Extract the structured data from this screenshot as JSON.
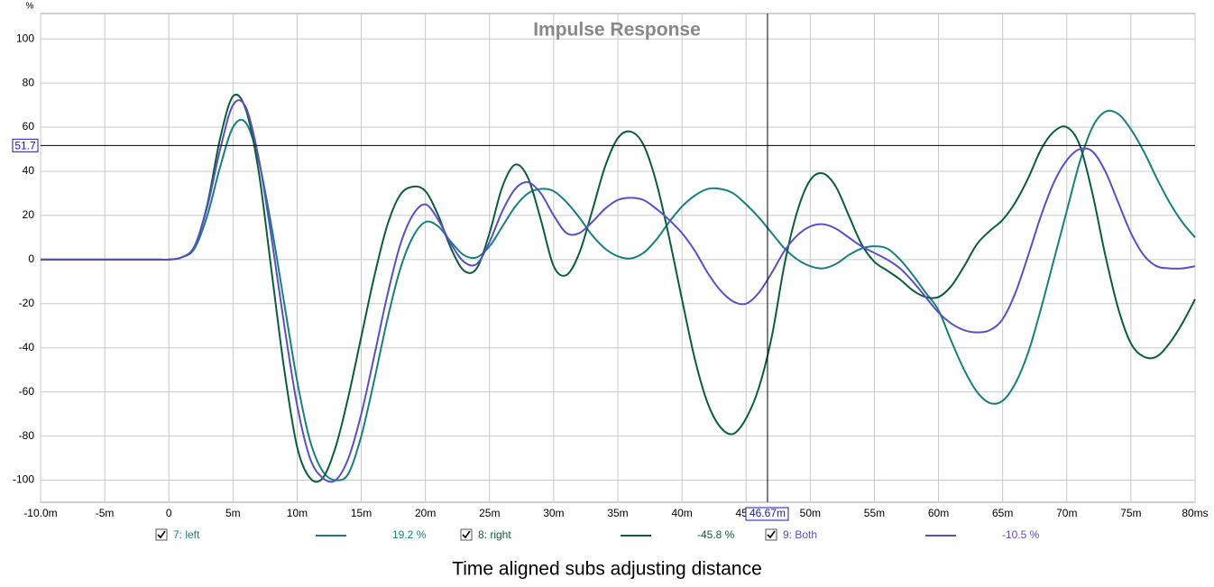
{
  "chart_data": {
    "type": "line",
    "title": "Impulse Response",
    "caption": "Time aligned subs adjusting distance",
    "y_unit": "%",
    "x": [
      -10,
      -9,
      -8,
      -7,
      -6,
      -5,
      -4,
      -3,
      -2,
      -1,
      0,
      1,
      2,
      3,
      4,
      5,
      6,
      7,
      8,
      9,
      10,
      11,
      12,
      13,
      14,
      15,
      16,
      17,
      18,
      19,
      20,
      21,
      22,
      23,
      24,
      25,
      26,
      27,
      28,
      29,
      30,
      31,
      32,
      33,
      34,
      35,
      36,
      37,
      38,
      39,
      40,
      41,
      42,
      43,
      44,
      45,
      46,
      47,
      48,
      49,
      50,
      51,
      52,
      53,
      54,
      55,
      56,
      57,
      58,
      59,
      60,
      61,
      62,
      63,
      64,
      65,
      66,
      67,
      68,
      69,
      70,
      71,
      72,
      73,
      74,
      75,
      76,
      77,
      78,
      79,
      80
    ],
    "series": [
      {
        "name": "7: left",
        "color": "#17807e",
        "cursor_value": 19.2,
        "cursor_value_label": "19.2 %",
        "values": [
          0,
          0,
          0,
          0,
          0,
          0,
          0,
          0,
          0,
          0,
          0,
          1,
          5,
          20,
          42,
          60,
          62,
          45,
          15,
          -20,
          -55,
          -82,
          -96,
          -100,
          -97,
          -80,
          -55,
          -28,
          -5,
          10,
          17,
          15,
          8,
          2,
          1,
          6,
          15,
          24,
          30,
          32,
          31,
          26,
          19,
          11,
          5,
          1.5,
          0.5,
          3,
          9,
          17,
          24,
          29,
          32,
          32,
          30,
          25,
          19,
          12,
          5,
          0,
          -3,
          -4,
          -2,
          2,
          5,
          6,
          5,
          0,
          -7,
          -15,
          -23,
          -37,
          -50,
          -60,
          -65,
          -64,
          -56,
          -42,
          -22,
          0,
          22,
          44,
          60,
          67,
          66,
          59,
          49,
          37,
          26,
          17,
          10
        ]
      },
      {
        "name": "8: right",
        "color": "#0b5e3a",
        "cursor_value": -45.8,
        "cursor_value_label": "-45.8 %",
        "values": [
          0,
          0,
          0,
          0,
          0,
          0,
          0,
          0,
          0,
          0,
          0,
          1,
          6,
          25,
          55,
          74,
          68,
          40,
          -5,
          -50,
          -85,
          -99,
          -99,
          -85,
          -62,
          -35,
          -8,
          15,
          29,
          33,
          31,
          20,
          5,
          -5,
          -4,
          12,
          33,
          43,
          37,
          18,
          -3,
          -7,
          3,
          22,
          42,
          55,
          58,
          52,
          35,
          10,
          -18,
          -45,
          -65,
          -76,
          -79,
          -72,
          -58,
          -35,
          -2,
          22,
          36,
          39,
          33,
          20,
          7,
          -1,
          -5,
          -9,
          -14,
          -17,
          -17,
          -12,
          -3,
          7,
          13,
          18,
          26,
          37,
          50,
          58,
          60,
          52,
          30,
          2,
          -22,
          -38,
          -44,
          -44,
          -38,
          -29,
          -18
        ]
      },
      {
        "name": "9: Both",
        "color": "#5a4fc4",
        "cursor_value": -10.5,
        "cursor_value_label": "-10.5 %",
        "values": [
          0,
          0,
          0,
          0,
          0,
          0,
          0,
          0,
          0,
          0,
          0,
          1,
          6,
          24,
          50,
          70,
          69,
          46,
          10,
          -30,
          -66,
          -90,
          -99,
          -100,
          -90,
          -70,
          -44,
          -17,
          6,
          20,
          25,
          18,
          7,
          -1,
          -2,
          8,
          22,
          32,
          35,
          30,
          20,
          12,
          12,
          17,
          23,
          27,
          28,
          27,
          23,
          18,
          12,
          4,
          -6,
          -14,
          -19,
          -20,
          -15,
          -6,
          4,
          11,
          15,
          16,
          14,
          10,
          6,
          3,
          0,
          -4,
          -10,
          -17,
          -24,
          -29,
          -32,
          -33,
          -32,
          -27,
          -15,
          2,
          20,
          35,
          45,
          50,
          49,
          40,
          26,
          12,
          2,
          -3,
          -4,
          -4,
          -3
        ]
      }
    ],
    "xlim": [
      -10,
      80
    ],
    "ylim": [
      -110,
      111.5
    ],
    "xticks": [
      {
        "value": -10,
        "label": "-10.0m"
      },
      {
        "value": -5,
        "label": "-5m"
      },
      0,
      {
        "value": 5,
        "label": "5m"
      },
      {
        "value": 10,
        "label": "10m"
      },
      {
        "value": 15,
        "label": "15m"
      },
      {
        "value": 20,
        "label": "20m"
      },
      {
        "value": 25,
        "label": "25m"
      },
      {
        "value": 30,
        "label": "30m"
      },
      {
        "value": 35,
        "label": "35m"
      },
      {
        "value": 40,
        "label": "40m"
      },
      {
        "value": 45,
        "label": "45m"
      },
      {
        "value": 50,
        "label": "50m"
      },
      {
        "value": 55,
        "label": "55m"
      },
      {
        "value": 60,
        "label": "60m"
      },
      {
        "value": 65,
        "label": "65m"
      },
      {
        "value": 70,
        "label": "70m"
      },
      {
        "value": 75,
        "label": "75m"
      },
      {
        "value": 80,
        "label": "80ms"
      }
    ],
    "yticks": [
      -100,
      -80,
      -60,
      -40,
      -20,
      0,
      20,
      40,
      60,
      80,
      100
    ],
    "grid": true,
    "cursor": {
      "x": 46.67,
      "x_label": "46.67m",
      "y": 51.7
    }
  }
}
